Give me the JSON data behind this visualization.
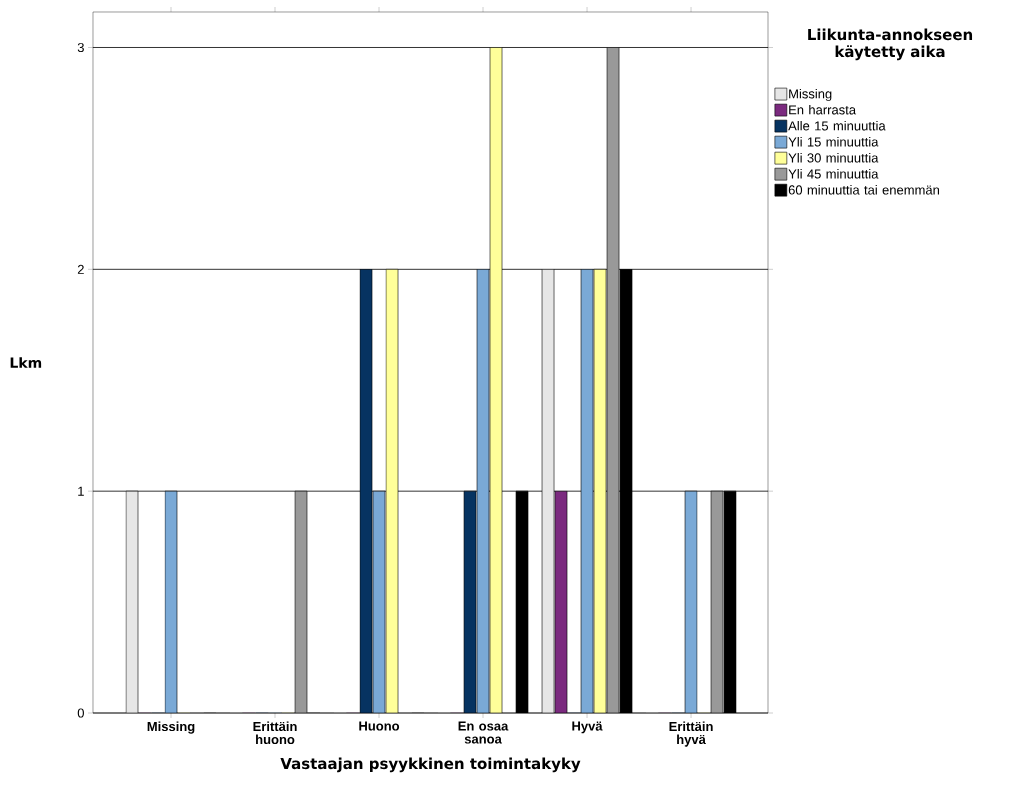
{
  "chart_data": {
    "type": "bar",
    "xlabel": "Vastaajan psyykkinen toimintakyky",
    "ylabel": "Lkm",
    "legend_title": "Liikunta-annokseen käytetty aika",
    "categories": [
      "Missing",
      "Erittäin huono",
      "Huono",
      "En osaa sanoa",
      "Hyvä",
      "Erittäin hyvä"
    ],
    "series": [
      {
        "name": "Missing",
        "color": "#e6e6e6",
        "values": [
          1,
          0,
          0,
          0,
          2,
          0
        ]
      },
      {
        "name": "En harrasta",
        "color": "#7b2a7f",
        "values": [
          0,
          0,
          0,
          0,
          1,
          0
        ]
      },
      {
        "name": "Alle 15 minuuttia",
        "color": "#063361",
        "values": [
          0,
          0,
          2,
          1,
          0,
          0
        ]
      },
      {
        "name": "Yli 15 minuuttia",
        "color": "#7aa9d6",
        "values": [
          1,
          0,
          1,
          2,
          2,
          1
        ]
      },
      {
        "name": "Yli 30 minuuttia",
        "color": "#ffff99",
        "values": [
          0,
          0,
          2,
          3,
          2,
          0
        ]
      },
      {
        "name": "Yli 45 minuuttia",
        "color": "#999999",
        "values": [
          0,
          1,
          0,
          0,
          3,
          1
        ]
      },
      {
        "name": "60 minuuttia tai enemmän",
        "color": "#000000",
        "values": [
          0,
          0,
          0,
          1,
          2,
          1
        ]
      }
    ],
    "ylim": [
      0,
      3.16
    ],
    "yticks": [
      0,
      1,
      2,
      3
    ],
    "grid": "y",
    "legend": "right"
  }
}
